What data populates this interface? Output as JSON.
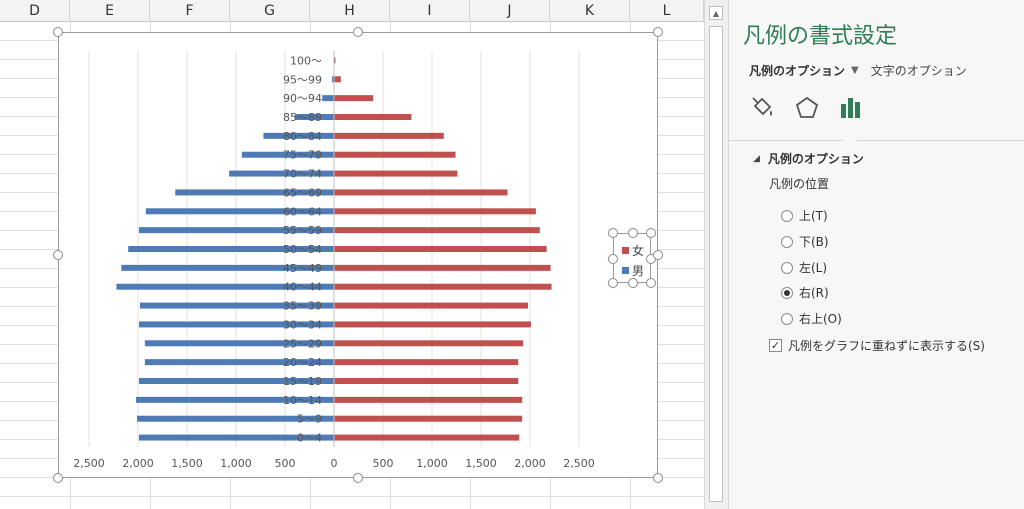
{
  "spreadsheet": {
    "columns": [
      "D",
      "E",
      "F",
      "G",
      "H",
      "I",
      "J",
      "K",
      "L"
    ]
  },
  "chart_data": {
    "type": "bar",
    "orientation": "horizontal",
    "categories": [
      "0～4",
      "5～9",
      "10～14",
      "15～19",
      "20～24",
      "25～29",
      "30～34",
      "35～39",
      "40～44",
      "45～49",
      "50～54",
      "55～59",
      "60～64",
      "65～69",
      "70～74",
      "75～79",
      "80～84",
      "85～89",
      "90～94",
      "95～99",
      "100～"
    ],
    "series": [
      {
        "name": "男",
        "color": "#4e7bb5",
        "values": [
          1990,
          2010,
          2020,
          1990,
          1930,
          1930,
          1990,
          1980,
          2220,
          2170,
          2100,
          1990,
          1920,
          1620,
          1070,
          940,
          720,
          400,
          120,
          20,
          5
        ]
      },
      {
        "name": "女",
        "color": "#c0504d",
        "values": [
          1890,
          1920,
          1920,
          1880,
          1880,
          1930,
          2010,
          1980,
          2220,
          2210,
          2170,
          2100,
          2060,
          1770,
          1260,
          1240,
          1120,
          790,
          400,
          70,
          15
        ]
      }
    ],
    "x_ticks": [
      "2,500",
      "2,000",
      "1,500",
      "1,000",
      "500",
      "0",
      "500",
      "1,000",
      "1,500",
      "2,000",
      "2,500"
    ],
    "xlim": [
      -2500,
      2500
    ],
    "grid": true,
    "legend_position": "right"
  },
  "panel": {
    "title": "凡例の書式設定",
    "tab_legend_options": "凡例のオプション",
    "tab_text_options": "文字のオプション",
    "icons": [
      "fill-line-icon",
      "effects-icon",
      "legend-options-icon"
    ],
    "section_title": "凡例のオプション",
    "position_label": "凡例の位置",
    "positions": [
      {
        "label": "上(T)",
        "checked": false
      },
      {
        "label": "下(B)",
        "checked": false
      },
      {
        "label": "左(L)",
        "checked": false
      },
      {
        "label": "右(R)",
        "checked": true
      },
      {
        "label": "右上(O)",
        "checked": false
      }
    ],
    "overlap_label": "凡例をグラフに重ねずに表示する(S)",
    "overlap_checked": true
  }
}
